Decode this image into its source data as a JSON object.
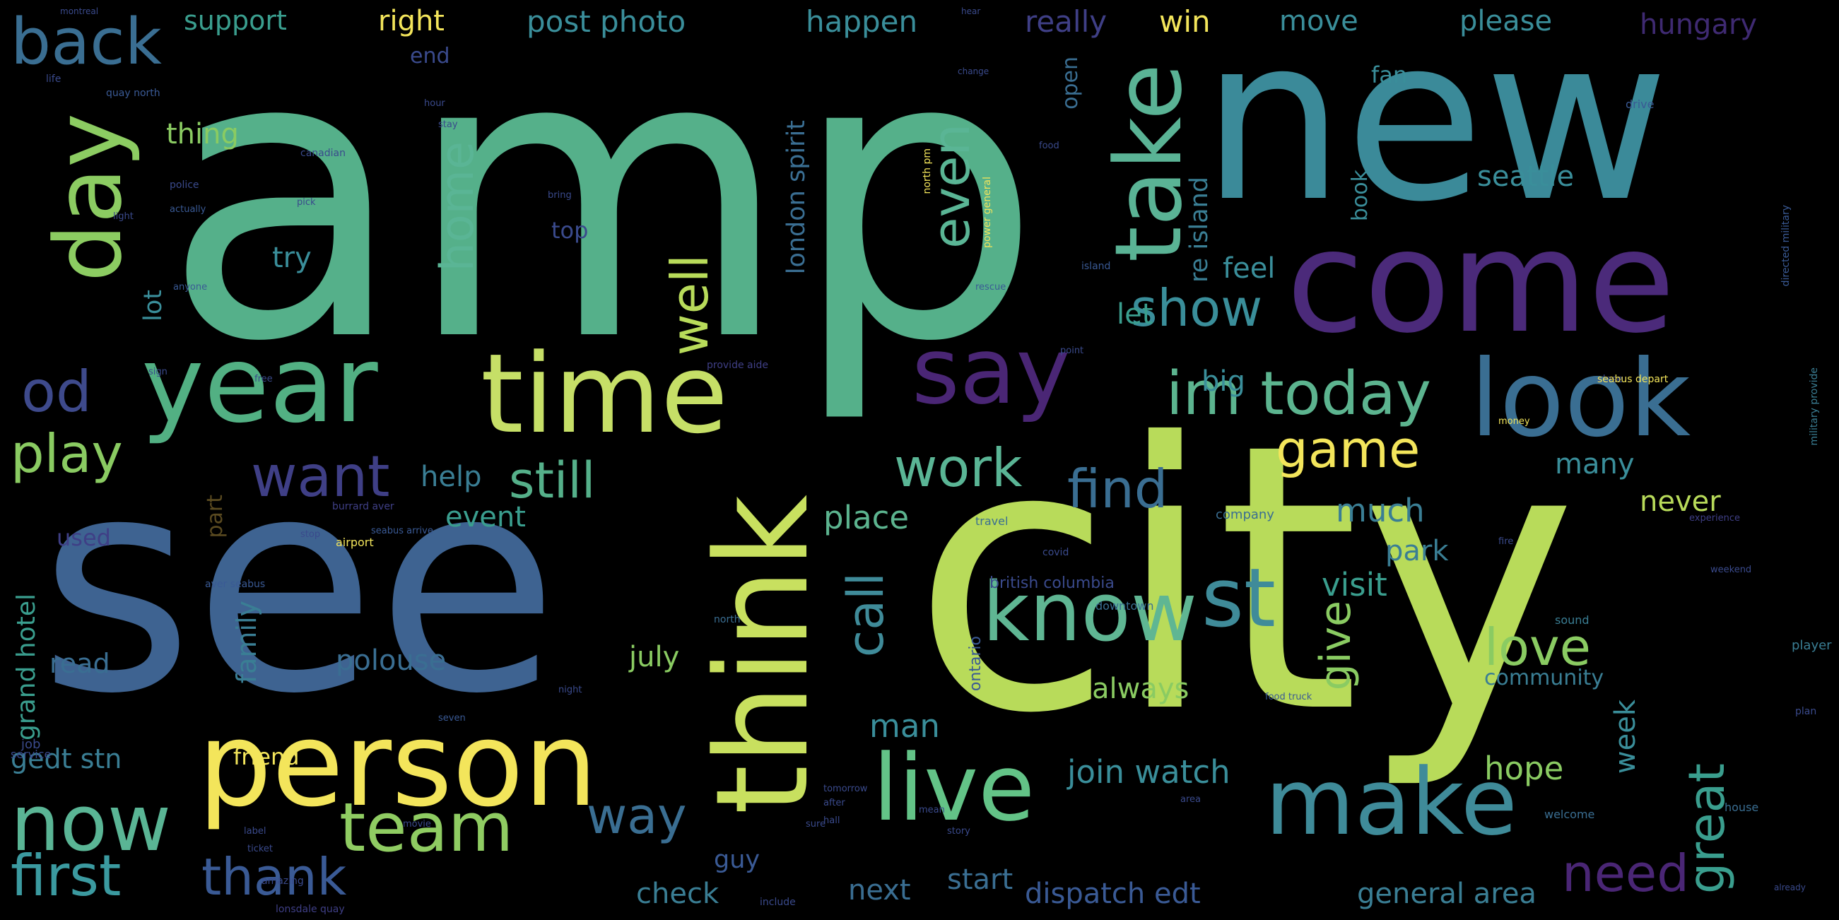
{
  "word_cloud": {
    "background": "#000000",
    "palette": [
      "#440154",
      "#3b528b",
      "#21918c",
      "#5ec962",
      "#fde725"
    ],
    "words": [
      {
        "text": "amp",
        "color": "#55b08a"
      },
      {
        "text": "city",
        "color": "#b8db5a"
      },
      {
        "text": "see",
        "color": "#3e6391"
      },
      {
        "text": "new",
        "color": "#3b8a99"
      },
      {
        "text": "come",
        "color": "#4b2a7a"
      },
      {
        "text": "think",
        "color": "#c8e05f"
      },
      {
        "text": "person",
        "color": "#f3e55b"
      },
      {
        "text": "time",
        "color": "#c6df67"
      },
      {
        "text": "year",
        "color": "#52b083"
      },
      {
        "text": "look",
        "color": "#3a6e92"
      },
      {
        "text": "make",
        "color": "#3f8b99"
      },
      {
        "text": "live",
        "color": "#63c387"
      },
      {
        "text": "say",
        "color": "#4a2675"
      },
      {
        "text": "take",
        "color": "#5ab395"
      },
      {
        "text": "day",
        "color": "#8ccc62"
      },
      {
        "text": "know",
        "color": "#5fb693"
      },
      {
        "text": "st",
        "color": "#3f8b99"
      },
      {
        "text": "now",
        "color": "#5ab595"
      },
      {
        "text": "team",
        "color": "#8fcc62"
      },
      {
        "text": "back",
        "color": "#3a6e92"
      },
      {
        "text": "im today",
        "color": "#5cb48f"
      },
      {
        "text": "want",
        "color": "#3f3f86"
      },
      {
        "text": "od",
        "color": "#3e4a8c"
      },
      {
        "text": "first",
        "color": "#3b9aa0"
      },
      {
        "text": "play",
        "color": "#8acb62"
      },
      {
        "text": "thank",
        "color": "#3a5a95"
      },
      {
        "text": "way",
        "color": "#3a6e92"
      },
      {
        "text": "still",
        "color": "#55b08a"
      },
      {
        "text": "work",
        "color": "#5ab595"
      },
      {
        "text": "find",
        "color": "#3a6e92"
      },
      {
        "text": "game",
        "color": "#f3e55b"
      },
      {
        "text": "show",
        "color": "#3a8e9a"
      },
      {
        "text": "well",
        "color": "#b8db5a"
      },
      {
        "text": "even",
        "color": "#5ab595"
      },
      {
        "text": "home",
        "color": "#5ab595"
      },
      {
        "text": "call",
        "color": "#3f8b99"
      },
      {
        "text": "love",
        "color": "#8acb62"
      },
      {
        "text": "need",
        "color": "#4a2675"
      },
      {
        "text": "great",
        "color": "#3a9e8e"
      },
      {
        "text": "give",
        "color": "#8acb62"
      },
      {
        "text": "hope",
        "color": "#8acb62"
      },
      {
        "text": "join watch",
        "color": "#3a8e9a"
      },
      {
        "text": "man",
        "color": "#3a8e9a"
      },
      {
        "text": "place",
        "color": "#5cb48f"
      },
      {
        "text": "much",
        "color": "#3a7e94"
      },
      {
        "text": "help",
        "color": "#3a7e94"
      },
      {
        "text": "event",
        "color": "#3a9e8e"
      },
      {
        "text": "visit",
        "color": "#3a9e8e"
      },
      {
        "text": "park",
        "color": "#3a7e94"
      },
      {
        "text": "seattle",
        "color": "#3a8e9a"
      },
      {
        "text": "feel",
        "color": "#3a8e9a"
      },
      {
        "text": "let",
        "color": "#3a9e8e"
      },
      {
        "text": "big",
        "color": "#3a8e9a"
      },
      {
        "text": "many",
        "color": "#3a8e9a"
      },
      {
        "text": "never",
        "color": "#b8db5a"
      },
      {
        "text": "week",
        "color": "#3a8e9a"
      },
      {
        "text": "always",
        "color": "#8acb62"
      },
      {
        "text": "community",
        "color": "#3a7e94"
      },
      {
        "text": "general area",
        "color": "#3a7e94"
      },
      {
        "text": "dispatch edt",
        "color": "#3a5a95"
      },
      {
        "text": "start",
        "color": "#3a6e92"
      },
      {
        "text": "next",
        "color": "#3a6e92"
      },
      {
        "text": "check",
        "color": "#3a7e94"
      },
      {
        "text": "guy",
        "color": "#3a5a95"
      },
      {
        "text": "polouse",
        "color": "#3a6e92"
      },
      {
        "text": "july",
        "color": "#8acb62"
      },
      {
        "text": "read",
        "color": "#3a6e92"
      },
      {
        "text": "friend",
        "color": "#f3e55b"
      },
      {
        "text": "family",
        "color": "#3a7e94"
      },
      {
        "text": "grand hotel",
        "color": "#3a9e8e"
      },
      {
        "text": "gedt stn",
        "color": "#3a7e94"
      },
      {
        "text": "used",
        "color": "#3f3f86"
      },
      {
        "text": "part",
        "color": "#5a4a20"
      },
      {
        "text": "lot",
        "color": "#3a8e9a"
      },
      {
        "text": "try",
        "color": "#3a8e9a"
      },
      {
        "text": "thing",
        "color": "#8acb62"
      },
      {
        "text": "top",
        "color": "#3a4a8c"
      },
      {
        "text": "london spirit",
        "color": "#3a6e92"
      },
      {
        "text": "re island",
        "color": "#3a7e94"
      },
      {
        "text": "book",
        "color": "#3a8e9a"
      },
      {
        "text": "support",
        "color": "#3a9e8e"
      },
      {
        "text": "right",
        "color": "#f3e55b"
      },
      {
        "text": "post photo",
        "color": "#3a8e9a"
      },
      {
        "text": "happen",
        "color": "#3a8e9a"
      },
      {
        "text": "really",
        "color": "#3f3f86"
      },
      {
        "text": "win",
        "color": "#f3e55b"
      },
      {
        "text": "move",
        "color": "#3a8e9a"
      },
      {
        "text": "please",
        "color": "#3a8e9a"
      },
      {
        "text": "hungary",
        "color": "#3f2a72"
      },
      {
        "text": "end",
        "color": "#3a4a8c"
      },
      {
        "text": "fan",
        "color": "#3a8e9a"
      },
      {
        "text": "open",
        "color": "#3a6e92"
      },
      {
        "text": "british columbia",
        "color": "#3a4a8c"
      },
      {
        "text": "ontario",
        "color": "#3a5a95"
      },
      {
        "text": "provide aide",
        "color": "#3f3f86"
      },
      {
        "text": "airport",
        "color": "#f3e55b"
      },
      {
        "text": "burrard aver",
        "color": "#3f3f86"
      },
      {
        "text": "money",
        "color": "#f3e55b"
      },
      {
        "text": "player",
        "color": "#3a7e94"
      },
      {
        "text": "sound",
        "color": "#3a7e94"
      },
      {
        "text": "house",
        "color": "#3a6e92"
      },
      {
        "text": "welcome",
        "color": "#3a6e92"
      },
      {
        "text": "company",
        "color": "#3a6e92"
      },
      {
        "text": "travel",
        "color": "#3a6e92"
      },
      {
        "text": "downtown",
        "color": "#3a6e92"
      },
      {
        "text": "service",
        "color": "#3a4a8c"
      },
      {
        "text": "job",
        "color": "#3a4a8c"
      },
      {
        "text": "canadian",
        "color": "#3a4a8c"
      },
      {
        "text": "police",
        "color": "#3a4a8c"
      },
      {
        "text": "quay north",
        "color": "#3a5a95"
      },
      {
        "text": "life",
        "color": "#3a4a8c"
      },
      {
        "text": "montreal",
        "color": "#3a4a8c"
      },
      {
        "text": "change",
        "color": "#3a4a8c"
      },
      {
        "text": "hear",
        "color": "#3a4a8c"
      },
      {
        "text": "drive",
        "color": "#3a5a95"
      },
      {
        "text": "close",
        "color": "#3a4a8c"
      },
      {
        "text": "island",
        "color": "#3a5a95"
      },
      {
        "text": "amazing",
        "color": "#3a4a8c"
      },
      {
        "text": "include",
        "color": "#3a4a8c"
      },
      {
        "text": "lonsdale quay",
        "color": "#3f3f86"
      },
      {
        "text": "already",
        "color": "#3a4a8c"
      },
      {
        "text": "seabus depart",
        "color": "#f3e55b"
      },
      {
        "text": "military provide",
        "color": "#3a7e94"
      },
      {
        "text": "directed military",
        "color": "#3a5a95"
      },
      {
        "text": "plan",
        "color": "#3a4a8c"
      },
      {
        "text": "north",
        "color": "#3a6e92"
      },
      {
        "text": "sign",
        "color": "#3a4a8c"
      },
      {
        "text": "light",
        "color": "#3a4a8c"
      },
      {
        "text": "point",
        "color": "#3a4a8c"
      },
      {
        "text": "night",
        "color": "#3a4a8c"
      },
      {
        "text": "label",
        "color": "#3a4a8c"
      },
      {
        "text": "ticket",
        "color": "#3a4a8c"
      },
      {
        "text": "sure",
        "color": "#3a4a8c"
      },
      {
        "text": "bring",
        "color": "#3a4a8c"
      },
      {
        "text": "pick",
        "color": "#3a4a8c"
      },
      {
        "text": "free",
        "color": "#3a4a8c"
      },
      {
        "text": "stop",
        "color": "#3a4a8c"
      },
      {
        "text": "food",
        "color": "#3a4a8c"
      },
      {
        "text": "stay",
        "color": "#3a4a8c"
      },
      {
        "text": "hour",
        "color": "#3a4a8c"
      },
      {
        "text": "covid",
        "color": "#3a4a8c"
      },
      {
        "text": "fire",
        "color": "#3a4a8c"
      },
      {
        "text": "hall",
        "color": "#3a4a8c"
      },
      {
        "text": "after",
        "color": "#3a4a8c"
      },
      {
        "text": "movie",
        "color": "#3a4a8c"
      },
      {
        "text": "story",
        "color": "#3a4a8c"
      },
      {
        "text": "mean",
        "color": "#3a4a8c"
      },
      {
        "text": "area",
        "color": "#3a4a8c"
      },
      {
        "text": "weekend",
        "color": "#3a4a8c"
      },
      {
        "text": "experience",
        "color": "#3f3f86"
      },
      {
        "text": "tomorrow",
        "color": "#3a4a8c"
      },
      {
        "text": "seabus arrive",
        "color": "#3a5a95"
      },
      {
        "text": "rescue",
        "color": "#3a5a95"
      },
      {
        "text": "actually",
        "color": "#3a5a95"
      },
      {
        "text": "anyone",
        "color": "#3a5a95"
      },
      {
        "text": "food truck",
        "color": "#3a5a95"
      },
      {
        "text": "aver seabus",
        "color": "#3a5a95"
      },
      {
        "text": "power general",
        "color": "#f3e55b"
      },
      {
        "text": "north pm",
        "color": "#f3e55b"
      },
      {
        "text": "seven",
        "color": "#3a5a95"
      }
    ]
  }
}
